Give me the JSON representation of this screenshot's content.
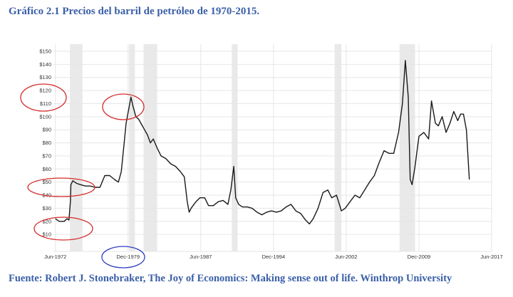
{
  "header": {
    "title": "Gráfico 2.1 Precios del barril de petróleo de 1970-2015."
  },
  "footer": {
    "source": "Fuente: Robert J. Stonebraker, The Joy of Economics: Making sense out of life. Winthrop University"
  },
  "chart_data": {
    "type": "line",
    "title": "",
    "xlabel": "",
    "ylabel": "",
    "grid": true,
    "xlim": [
      1972.2,
      2017.4
    ],
    "ylim": [
      0,
      150
    ],
    "yticks": [
      10,
      20,
      30,
      40,
      50,
      60,
      70,
      80,
      90,
      100,
      110,
      120,
      130,
      140,
      150
    ],
    "ytick_labels": [
      "$10",
      "$20",
      "$30",
      "$40",
      "$50",
      "$60",
      "$70",
      "$80",
      "$90",
      "$100",
      "$110",
      "$120",
      "$130",
      "$140",
      "$150"
    ],
    "xticks": [
      {
        "value": 1972.4,
        "label": "Jun-1972"
      },
      {
        "value": 1979.9,
        "label": "Dec-1979"
      },
      {
        "value": 1987.4,
        "label": "Jun-1987"
      },
      {
        "value": 1994.9,
        "label": "Dec-1994"
      },
      {
        "value": 2002.4,
        "label": "Jun-2002"
      },
      {
        "value": 2009.9,
        "label": "Dec-2009"
      },
      {
        "value": 2017.4,
        "label": "Jun-2017"
      }
    ],
    "recessions": [
      [
        1973.9,
        1975.2
      ],
      [
        1980.0,
        1980.6
      ],
      [
        1981.5,
        1982.9
      ],
      [
        1990.6,
        1991.2
      ],
      [
        2001.2,
        2001.9
      ],
      [
        2007.9,
        2009.5
      ]
    ],
    "series": [
      {
        "color": "#1a1a1a",
        "x": [
          1972.4,
          1972.8,
          1973.3,
          1973.6,
          1973.8,
          1973.95,
          1974.0,
          1974.2,
          1974.6,
          1975.0,
          1975.5,
          1976.0,
          1976.5,
          1977.0,
          1977.5,
          1978.0,
          1978.5,
          1978.9,
          1979.2,
          1979.5,
          1979.7,
          1980.0,
          1980.2,
          1980.4,
          1980.7,
          1981.0,
          1981.3,
          1981.6,
          1981.9,
          1982.2,
          1982.5,
          1982.9,
          1983.3,
          1983.8,
          1984.3,
          1984.8,
          1985.3,
          1985.7,
          1986.0,
          1986.2,
          1986.4,
          1986.6,
          1986.9,
          1987.3,
          1987.8,
          1988.2,
          1988.7,
          1989.2,
          1989.7,
          1990.2,
          1990.5,
          1990.8,
          1991.0,
          1991.3,
          1991.7,
          1992.2,
          1992.7,
          1993.2,
          1993.7,
          1994.2,
          1994.7,
          1995.2,
          1995.7,
          1996.2,
          1996.7,
          1997.2,
          1997.7,
          1998.2,
          1998.6,
          1999.0,
          1999.5,
          2000.0,
          2000.5,
          2000.9,
          2001.4,
          2001.9,
          2002.3,
          2002.8,
          2003.3,
          2003.8,
          2004.3,
          2004.8,
          2005.3,
          2005.8,
          2006.3,
          2006.8,
          2007.3,
          2007.8,
          2008.2,
          2008.5,
          2008.8,
          2009.0,
          2009.2,
          2009.5,
          2009.9,
          2010.4,
          2010.9,
          2011.2,
          2011.6,
          2011.9,
          2012.3,
          2012.7,
          2013.1,
          2013.5,
          2013.9,
          2014.2,
          2014.5,
          2014.8,
          2015.1
        ],
        "y": [
          22,
          20,
          20,
          22,
          21,
          35,
          48,
          51,
          49,
          48,
          47,
          47,
          46,
          46,
          55,
          55,
          52,
          50,
          58,
          80,
          95,
          107,
          115,
          108,
          100,
          98,
          94,
          90,
          86,
          80,
          83,
          76,
          70,
          68,
          64,
          62,
          58,
          54,
          35,
          27,
          30,
          32,
          35,
          38,
          38,
          32,
          32,
          35,
          36,
          33,
          44,
          62,
          38,
          33,
          31,
          31,
          30,
          27,
          25,
          27,
          28,
          27,
          28,
          31,
          33,
          28,
          26,
          21,
          18,
          22,
          30,
          42,
          44,
          38,
          40,
          28,
          30,
          35,
          40,
          38,
          44,
          50,
          55,
          65,
          74,
          72,
          72,
          88,
          110,
          143,
          115,
          52,
          48,
          62,
          85,
          88,
          83,
          112,
          95,
          93,
          100,
          88,
          95,
          104,
          97,
          102,
          102,
          90,
          52
        ]
      }
    ]
  },
  "annotations": [
    {
      "name": "circle-y-120-110",
      "color": "#d42a2a"
    },
    {
      "name": "circle-y-50",
      "color": "#d42a2a"
    },
    {
      "name": "circle-y-20",
      "color": "#d42a2a"
    },
    {
      "name": "circle-peak-1980",
      "color": "#d42a2a"
    },
    {
      "name": "circle-dec-1979",
      "color": "#2e3fc4"
    }
  ]
}
